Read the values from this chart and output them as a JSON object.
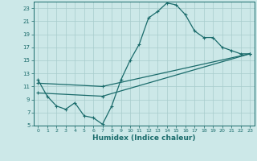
{
  "title": "",
  "xlabel": "Humidex (Indice chaleur)",
  "ylabel": "",
  "bg_color": "#cce8e8",
  "grid_color": "#a8cccc",
  "line_color": "#1a6b6b",
  "xlim": [
    -0.5,
    23.5
  ],
  "ylim": [
    5,
    24
  ],
  "xticks": [
    0,
    1,
    2,
    3,
    4,
    5,
    6,
    7,
    8,
    9,
    10,
    11,
    12,
    13,
    14,
    15,
    16,
    17,
    18,
    19,
    20,
    21,
    22,
    23
  ],
  "yticks": [
    5,
    7,
    9,
    11,
    13,
    15,
    17,
    19,
    21,
    23
  ],
  "curve1_x": [
    0,
    1,
    2,
    3,
    4,
    5,
    6,
    7,
    8,
    9,
    10,
    11,
    12,
    13,
    14,
    15,
    16,
    17,
    18,
    19,
    20,
    21,
    22,
    23
  ],
  "curve1_y": [
    12,
    9.5,
    8,
    7.5,
    8.5,
    6.5,
    6.2,
    5.2,
    8,
    12,
    15,
    17.5,
    21.5,
    22.5,
    23.8,
    23.5,
    22,
    19.5,
    18.5,
    18.5,
    17,
    16.5,
    16,
    16
  ],
  "curve2_x": [
    0,
    7,
    23
  ],
  "curve2_y": [
    11.5,
    11,
    16
  ],
  "curve3_x": [
    0,
    7,
    23
  ],
  "curve3_y": [
    10,
    9.5,
    16
  ],
  "marker": "+"
}
